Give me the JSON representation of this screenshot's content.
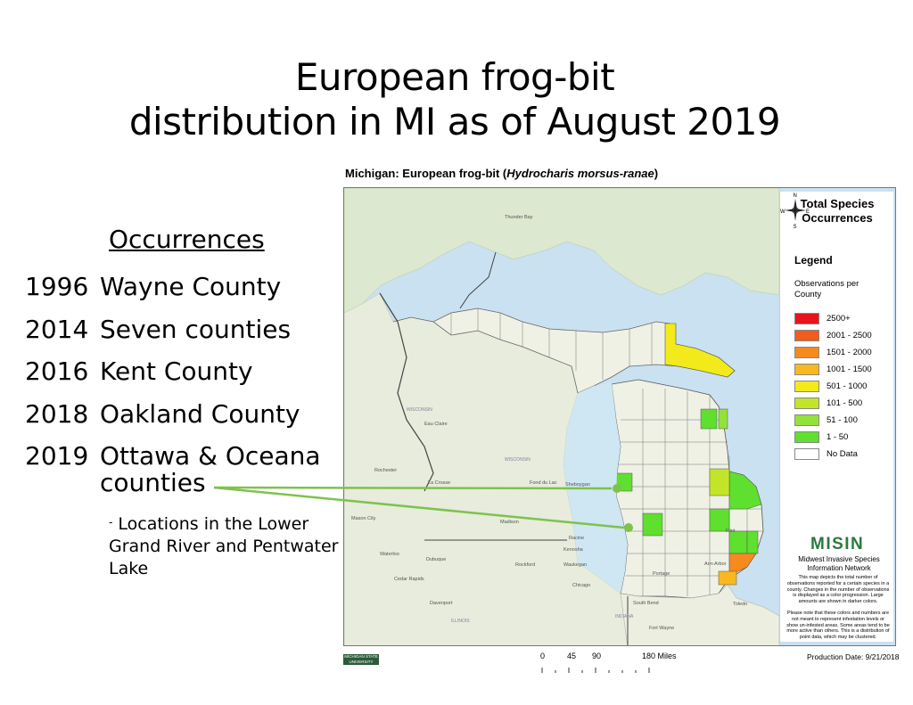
{
  "slide": {
    "title_line1": "European frog-bit",
    "title_line2": "distribution in MI as of August 2019"
  },
  "occurrences": {
    "heading": "Occurrences",
    "rows": [
      {
        "year": "1996",
        "text": "Wayne County"
      },
      {
        "year": "2014",
        "text": "Seven counties"
      },
      {
        "year": "2016",
        "text": "Kent County"
      },
      {
        "year": "2018",
        "text": "Oakland County"
      },
      {
        "year": "2019",
        "text": "Ottawa & Oceana"
      }
    ],
    "continuation": "counties",
    "locations_dash": "-",
    "locations_text": "Locations in the Lower Grand River and Pentwater Lake"
  },
  "map": {
    "title_prefix": "Michigan: European frog-bit (",
    "title_species": "Hydrocharis morsus-ranae",
    "title_suffix": ")",
    "legend_title_line1": "Total Species",
    "legend_title_line2": "Occurrences",
    "legend_label": "Legend",
    "legend_sub": "Observations per County",
    "legend_items": [
      {
        "label": "2500+",
        "color": "#e8141c"
      },
      {
        "label": "2001 - 2500",
        "color": "#f25c1c"
      },
      {
        "label": "1501 - 2000",
        "color": "#f58a1f"
      },
      {
        "label": "1001 - 1500",
        "color": "#f9b81e"
      },
      {
        "label": "501 - 1000",
        "color": "#f2ea1a"
      },
      {
        "label": "101 - 500",
        "color": "#c2e52a"
      },
      {
        "label": "51 - 100",
        "color": "#93e23a"
      },
      {
        "label": "1 - 50",
        "color": "#5fdf2e"
      },
      {
        "label": "No Data",
        "color": "#ffffff"
      }
    ],
    "compass": {
      "n": "N",
      "s": "S",
      "e": "E",
      "w": "W"
    },
    "misin_logo": "MISIN",
    "misin_sub": "Midwest Invasive Species Information Network",
    "note1": "This map depicts the total number of observations reported for a certain species in a county. Changes in the number of observations is displayed as a color progression. Large amounts are shown in darker colors.",
    "note2": "Please note that these colors and numbers are not meant to represent infestation levels or show un-infested areas. Some areas tend to be more active than others. This is a distribution of point data, which may be clustered.",
    "footer_logo": "MICHIGAN STATE UNIVERSITY",
    "scale": [
      "0",
      "45",
      "90",
      "180 Miles"
    ],
    "production": "Production Date: 9/21/2018",
    "place_labels": {
      "thunder_bay": "Thunder Bay",
      "wisconsin": "WISCONSIN",
      "eau_claire": "Eau Claire",
      "rochester": "Rochester",
      "la_crosse": "La Crosse",
      "mason_city": "Mason City",
      "waterloo": "Waterloo",
      "dubuque": "Dubuque",
      "cedar_rapids": "Cedar Rapids",
      "davenport": "Davenport",
      "illinois": "ILLINOIS",
      "fond_du_lac": "Fond du Lac",
      "sheboygan": "Sheboygan",
      "madison": "Madison",
      "racine": "Racine",
      "kenosha": "Kenosha",
      "rockford": "Rockford",
      "waukegan": "Waukegan",
      "chicago": "Chicago",
      "south_bend": "South Bend",
      "indiana": "INDIANA",
      "fort_wayne": "Fort Wayne",
      "portage": "Portage",
      "ann_arbor": "Ann Arbor",
      "toledo": "Toledo",
      "flint": "Flint",
      "wisconsin_lower": "WISCONSIN"
    }
  }
}
